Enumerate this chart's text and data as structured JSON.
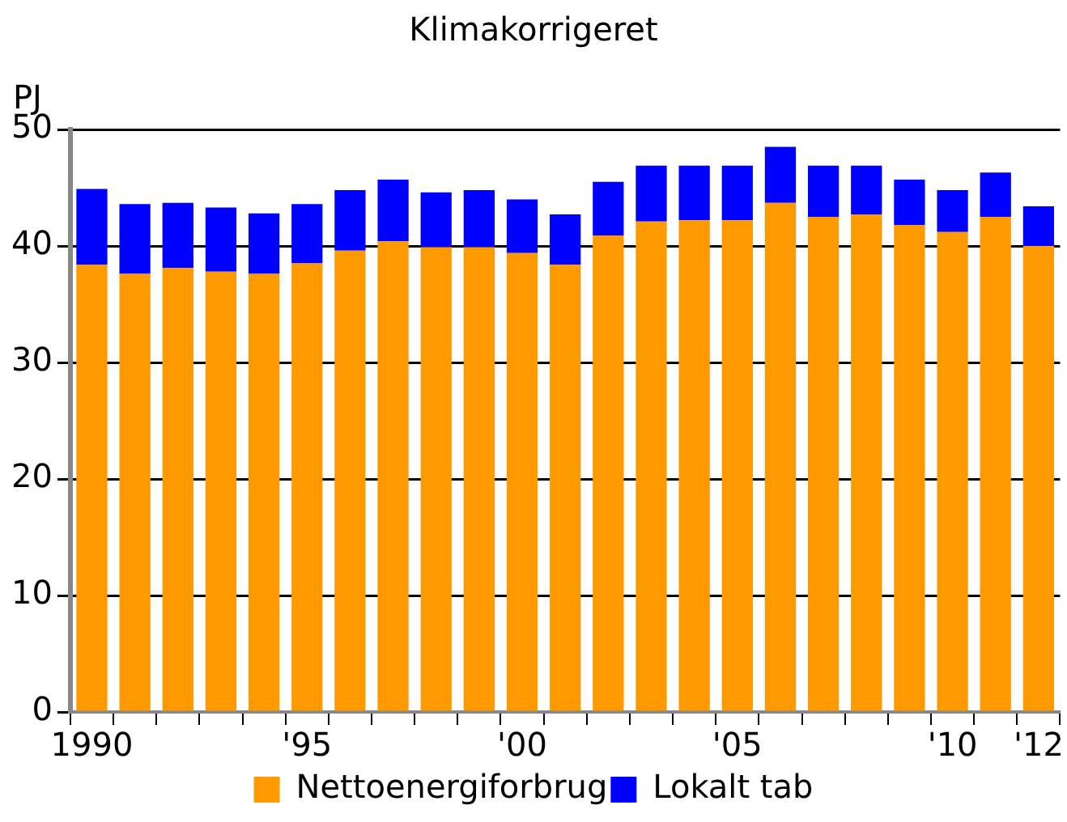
{
  "chart_data": {
    "type": "bar",
    "title": "Klimakorrigeret",
    "ylabel": "PJ",
    "categories": [
      "1990",
      null,
      null,
      null,
      null,
      "'95",
      null,
      null,
      null,
      null,
      "'00",
      null,
      null,
      null,
      null,
      "'05",
      null,
      null,
      null,
      null,
      "'10",
      null,
      "'12"
    ],
    "series": [
      {
        "name": "Nettoenergiforbrug",
        "color": "#ff9900",
        "values": [
          38.4,
          37.6,
          38.1,
          37.8,
          37.6,
          38.5,
          39.6,
          40.4,
          39.9,
          39.9,
          39.4,
          38.4,
          40.9,
          42.1,
          42.2,
          42.2,
          43.7,
          42.5,
          42.7,
          41.8,
          41.2,
          42.5,
          40.0
        ]
      },
      {
        "name": "Lokalt tab",
        "color": "#0000ff",
        "values": [
          6.5,
          6.0,
          5.6,
          5.5,
          5.2,
          5.1,
          5.2,
          5.3,
          4.7,
          4.9,
          4.6,
          4.3,
          4.6,
          4.8,
          4.7,
          4.7,
          4.8,
          4.4,
          4.2,
          3.9,
          3.6,
          3.8,
          3.4
        ]
      }
    ],
    "stacked": true,
    "ylim": [
      0,
      50
    ],
    "yticks": [
      0,
      10,
      20,
      30,
      40,
      50
    ],
    "grid": "y",
    "legend": "bottom"
  }
}
